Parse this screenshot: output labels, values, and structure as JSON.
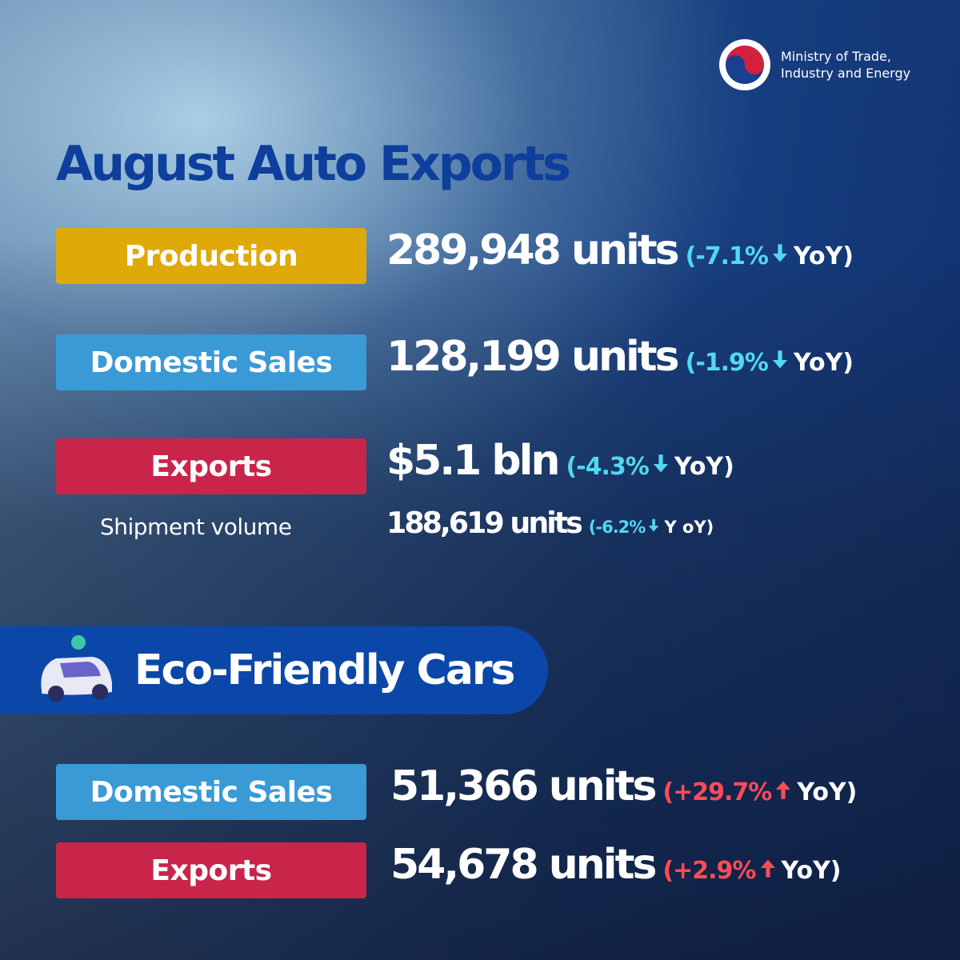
{
  "header": {
    "logo_lines": [
      "Ministry of Trade,",
      "Industry and Energy"
    ]
  },
  "title": "August Auto Exports",
  "rows": [
    {
      "label": "Production",
      "label_color": "#e0a90a",
      "value": "289,948 units",
      "change": "(-7.1%",
      "direction": "down",
      "period": "YoY)"
    },
    {
      "label": "Domestic Sales",
      "label_color": "#3a9ad6",
      "value": "128,199 units",
      "change": "(-1.9%",
      "direction": "down",
      "period": "YoY)"
    },
    {
      "label": "Exports",
      "label_color": "#c9254b",
      "value": "$5.1 bln",
      "change": "(-4.3%",
      "direction": "down",
      "period": "YoY)"
    }
  ],
  "shipment": {
    "label": "Shipment volume",
    "value": "188,619 units",
    "change": "(-6.2%",
    "direction": "down",
    "period": "Y oY)"
  },
  "eco": {
    "title": "Eco-Friendly Cars",
    "rows": [
      {
        "label": "Domestic Sales",
        "label_color": "#3a9ad6",
        "value": "51,366 units",
        "change": "(+29.7%",
        "direction": "up",
        "period": "YoY)"
      },
      {
        "label": "Exports",
        "label_color": "#c9254b",
        "value": "54,678 units",
        "change": "(+2.9%",
        "direction": "up",
        "period": "YoY)"
      }
    ]
  }
}
